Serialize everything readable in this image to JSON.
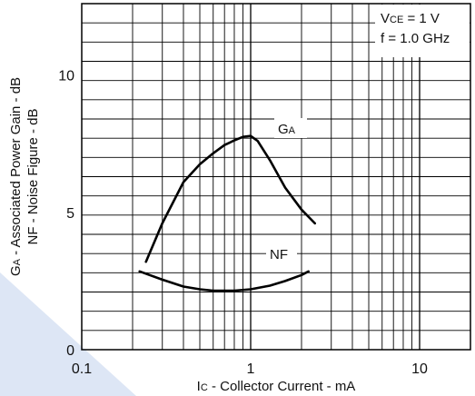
{
  "chart_data": {
    "type": "line",
    "title": "",
    "x_scale": "log",
    "xlim": [
      0.1,
      20
    ],
    "ylim": [
      0,
      12.6
    ],
    "grid": true,
    "x_ticks": [
      {
        "value": 0.1,
        "label": "0.1"
      },
      {
        "value": 1,
        "label": "1"
      },
      {
        "value": 10,
        "label": "10"
      }
    ],
    "y_ticks": [
      {
        "value": 0,
        "label": "0"
      },
      {
        "value": 5,
        "label": "5"
      },
      {
        "value": 10,
        "label": "10"
      }
    ],
    "xlabel": {
      "sub": "I",
      "subscript": "C",
      "rest": " - Collector Current - mA"
    },
    "ylabel_line1": {
      "sub": "G",
      "subscript": "A",
      "rest": " - Associated Power Gain - dB"
    },
    "ylabel_line2": "NF - Noise Figure - dB",
    "conditions": [
      {
        "sub": "V",
        "subscript": "CE",
        "rest": " = 1 V"
      },
      {
        "sub": "",
        "subscript": "",
        "rest": "f = 1.0 GHz"
      }
    ],
    "series": [
      {
        "name": {
          "sub": "G",
          "subscript": "A"
        },
        "color": "#000000",
        "points": [
          {
            "x": 0.24,
            "y": 3.2
          },
          {
            "x": 0.3,
            "y": 4.6
          },
          {
            "x": 0.4,
            "y": 6.1
          },
          {
            "x": 0.5,
            "y": 6.75
          },
          {
            "x": 0.6,
            "y": 7.15
          },
          {
            "x": 0.7,
            "y": 7.45
          },
          {
            "x": 0.8,
            "y": 7.62
          },
          {
            "x": 0.9,
            "y": 7.75
          },
          {
            "x": 1.0,
            "y": 7.78
          },
          {
            "x": 1.1,
            "y": 7.6
          },
          {
            "x": 1.3,
            "y": 6.9
          },
          {
            "x": 1.6,
            "y": 5.9
          },
          {
            "x": 2.0,
            "y": 5.1
          },
          {
            "x": 2.4,
            "y": 4.6
          }
        ]
      },
      {
        "name": {
          "sub": "NF",
          "subscript": ""
        },
        "color": "#000000",
        "points": [
          {
            "x": 0.22,
            "y": 2.85
          },
          {
            "x": 0.3,
            "y": 2.55
          },
          {
            "x": 0.4,
            "y": 2.3
          },
          {
            "x": 0.5,
            "y": 2.2
          },
          {
            "x": 0.6,
            "y": 2.15
          },
          {
            "x": 0.8,
            "y": 2.15
          },
          {
            "x": 1.0,
            "y": 2.2
          },
          {
            "x": 1.3,
            "y": 2.33
          },
          {
            "x": 1.6,
            "y": 2.5
          },
          {
            "x": 2.0,
            "y": 2.72
          },
          {
            "x": 2.2,
            "y": 2.85
          }
        ]
      }
    ],
    "watermark_color": "#dde6f5"
  }
}
